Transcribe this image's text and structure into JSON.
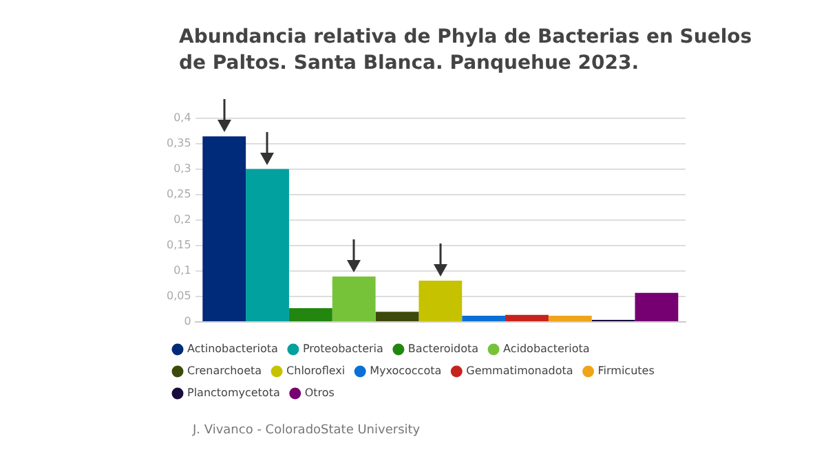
{
  "chart_data": {
    "type": "bar",
    "title": "Abundancia relativa de Phyla de Bacterias en Suelos de Paltos. Santa Blanca. Panquehue 2023.",
    "categories": [
      null
    ],
    "series": [
      {
        "name": "Actinobacteriota",
        "color": "#002a7a",
        "values": [
          0.364
        ]
      },
      {
        "name": "Proteobacteria",
        "color": "#00a19e",
        "values": [
          0.3
        ]
      },
      {
        "name": "Bacteroidota",
        "color": "#23860f",
        "values": [
          0.027
        ]
      },
      {
        "name": "Acidobacteriota",
        "color": "#76c33a",
        "values": [
          0.089
        ]
      },
      {
        "name": "Crenarchoeta",
        "color": "#3c4a0c",
        "values": [
          0.02
        ]
      },
      {
        "name": "Chloroflexi",
        "color": "#c6c200",
        "values": [
          0.081
        ]
      },
      {
        "name": "Myxococcota",
        "color": "#0b6fd6",
        "values": [
          0.012
        ]
      },
      {
        "name": "Gemmatimonadota",
        "color": "#c6231c",
        "values": [
          0.014
        ]
      },
      {
        "name": "Firmicutes",
        "color": "#eea51a",
        "values": [
          0.012
        ]
      },
      {
        "name": "Planctomycetota",
        "color": "#1a0c3c",
        "values": [
          0.004
        ]
      },
      {
        "name": "Otros",
        "color": "#760071",
        "values": [
          0.057
        ]
      }
    ],
    "ylim": [
      0,
      0.4
    ],
    "yticks": [
      0,
      {
        "value": 0.05,
        "label": "0,05"
      },
      {
        "value": 0.1,
        "label": "0,1"
      },
      {
        "value": 0.15,
        "label": "0,15"
      },
      {
        "value": 0.2,
        "label": "0,2"
      },
      {
        "value": 0.25,
        "label": "0,25"
      },
      {
        "value": 0.3,
        "label": "0,3"
      },
      {
        "value": 0.35,
        "label": "0,35"
      },
      {
        "value": 0.4,
        "label": "0,4"
      }
    ],
    "grid": "y",
    "legend": "bottom",
    "annotations": [
      "J. Vivanco - ColoradoState University"
    ]
  }
}
